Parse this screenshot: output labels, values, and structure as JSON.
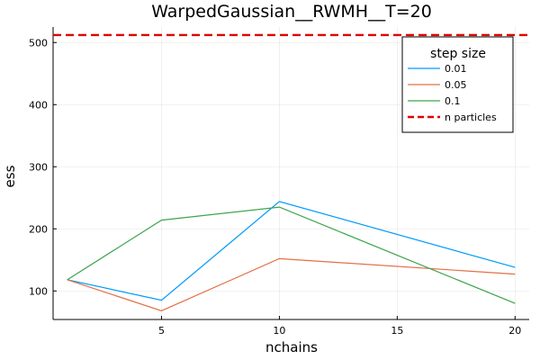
{
  "chart_data": {
    "type": "line",
    "title": "WarpedGaussian__RWMH__T=20",
    "xlabel": "nchains",
    "ylabel": "ess",
    "x": [
      1,
      5,
      10,
      20
    ],
    "xticks": [
      5,
      10,
      15,
      20
    ],
    "yticks": [
      100,
      200,
      300,
      400,
      500
    ],
    "xlim": [
      0.4,
      20.6
    ],
    "ylim": [
      54,
      525
    ],
    "grid": true,
    "legend": {
      "title": "step size",
      "position": "top-right"
    },
    "series": [
      {
        "name": "0.01",
        "values": [
          118,
          85,
          244,
          138
        ],
        "color": "#009AFA"
      },
      {
        "name": "0.05",
        "values": [
          118,
          68,
          152,
          127
        ],
        "color": "#E36F47"
      },
      {
        "name": "0.1",
        "values": [
          118,
          214,
          235,
          80
        ],
        "color": "#3EA44E"
      }
    ],
    "reference_line": {
      "name": "n particles",
      "value": 512,
      "color": "#E00000"
    }
  }
}
